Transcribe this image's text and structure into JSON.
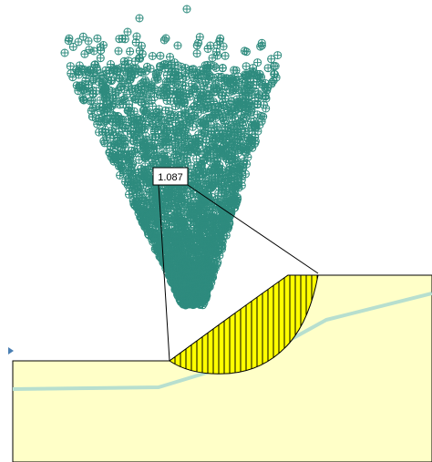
{
  "factor_of_safety": "1.087",
  "colors": {
    "soil": "#ffffc8",
    "soil_edge": "#000000",
    "water_table": "#b7dfcf",
    "slip_fill": "#ffff00",
    "hatch": "#000000",
    "points": "#2e8b7e",
    "leader": "#000000"
  },
  "icons": {
    "boundary_marker": "triangle-right",
    "center_marker": "circle-cross"
  }
}
